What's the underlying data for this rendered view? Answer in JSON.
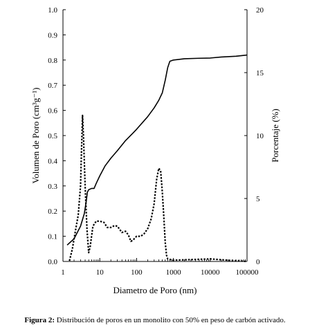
{
  "chart_data": {
    "type": "line",
    "xlabel": "Diametro de Poro (nm)",
    "ylabel_left": "Volumen de Poro (cm³g⁻¹)",
    "ylabel_right": "Porcentaje (%)",
    "xscale": "log",
    "xlim": [
      1,
      100000
    ],
    "ylim_left": [
      0,
      1.0
    ],
    "ylim_right": [
      0,
      20
    ],
    "x_ticks": [
      "1",
      "10",
      "100",
      "1000",
      "10000",
      "100000"
    ],
    "y_left_ticks": [
      "0.0",
      "0.1",
      "0.2",
      "0.3",
      "0.4",
      "0.5",
      "0.6",
      "0.7",
      "0.8",
      "0.9",
      "1.0"
    ],
    "y_right_ticks": [
      "0",
      "5",
      "10",
      "15",
      "20"
    ],
    "grid": false,
    "series": [
      {
        "style": "solid",
        "axis": "left",
        "points": [
          [
            1.3,
            0.065
          ],
          [
            2.0,
            0.09
          ],
          [
            3.0,
            0.14
          ],
          [
            3.8,
            0.19
          ],
          [
            4.3,
            0.24
          ],
          [
            4.6,
            0.275
          ],
          [
            5,
            0.285
          ],
          [
            6,
            0.29
          ],
          [
            7,
            0.29
          ],
          [
            8,
            0.31
          ],
          [
            10,
            0.34
          ],
          [
            14,
            0.38
          ],
          [
            20,
            0.41
          ],
          [
            30,
            0.44
          ],
          [
            50,
            0.48
          ],
          [
            80,
            0.51
          ],
          [
            100,
            0.525
          ],
          [
            200,
            0.575
          ],
          [
            300,
            0.61
          ],
          [
            400,
            0.64
          ],
          [
            500,
            0.67
          ],
          [
            600,
            0.72
          ],
          [
            700,
            0.77
          ],
          [
            800,
            0.795
          ],
          [
            1000,
            0.8
          ],
          [
            2000,
            0.805
          ],
          [
            5000,
            0.807
          ],
          [
            10000,
            0.808
          ],
          [
            20000,
            0.812
          ],
          [
            50000,
            0.815
          ],
          [
            100000,
            0.82
          ]
        ]
      },
      {
        "style": "dashed",
        "axis": "right",
        "points": [
          [
            1.5,
            0.05
          ],
          [
            1.8,
            1.0
          ],
          [
            2.2,
            2.5
          ],
          [
            2.6,
            3.7
          ],
          [
            3.0,
            6.0
          ],
          [
            3.2,
            9.0
          ],
          [
            3.4,
            11.6
          ],
          [
            3.6,
            10.0
          ],
          [
            4.0,
            6.0
          ],
          [
            4.5,
            2.5
          ],
          [
            5.0,
            0.7
          ],
          [
            5.5,
            1.2
          ],
          [
            6.5,
            2.8
          ],
          [
            8.0,
            3.2
          ],
          [
            10,
            3.2
          ],
          [
            13,
            3.1
          ],
          [
            16,
            2.7
          ],
          [
            20,
            2.7
          ],
          [
            25,
            2.85
          ],
          [
            30,
            2.8
          ],
          [
            40,
            2.3
          ],
          [
            50,
            2.4
          ],
          [
            60,
            2.1
          ],
          [
            70,
            1.6
          ],
          [
            80,
            1.7
          ],
          [
            100,
            2.0
          ],
          [
            130,
            2.0
          ],
          [
            160,
            2.2
          ],
          [
            200,
            2.6
          ],
          [
            250,
            3.4
          ],
          [
            300,
            4.6
          ],
          [
            350,
            6.5
          ],
          [
            400,
            7.4
          ],
          [
            450,
            7.2
          ],
          [
            500,
            5.5
          ],
          [
            550,
            3.5
          ],
          [
            600,
            1.5
          ],
          [
            650,
            0.5
          ],
          [
            700,
            0.2
          ],
          [
            1000,
            0.1
          ],
          [
            10000,
            0.2
          ],
          [
            30000,
            0.1
          ],
          [
            100000,
            0.0
          ]
        ]
      }
    ]
  },
  "caption": {
    "label": "Figura 2:",
    "text": " Distribución de poros en un monolito con 50% en peso de carbón activado."
  }
}
